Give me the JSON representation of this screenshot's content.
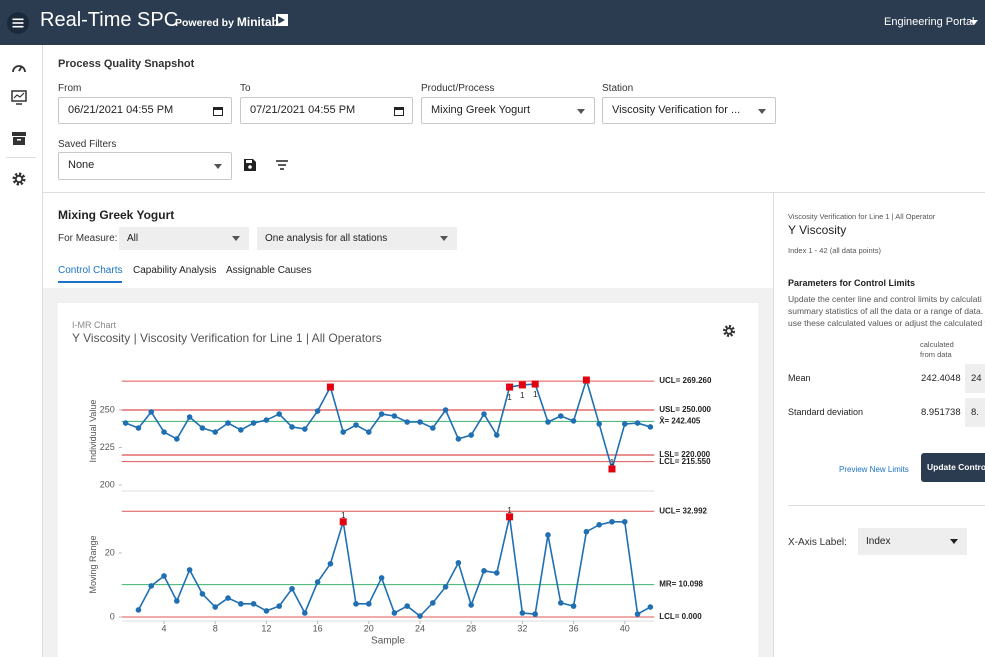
{
  "header": {
    "title": "Real-Time SPC",
    "powered_by": "Powered by",
    "brand": "Minitab",
    "portal": "Engineering Portal"
  },
  "filters": {
    "title": "Process Quality Snapshot",
    "from": {
      "label": "From",
      "value": "06/21/2021 04:55 PM"
    },
    "to": {
      "label": "To",
      "value": "07/21/2021 04:55 PM"
    },
    "product": {
      "label": "Product/Process",
      "value": "Mixing Greek Yogurt"
    },
    "station": {
      "label": "Station",
      "value": "Viscosity Verification for ..."
    },
    "saved": {
      "label": "Saved Filters",
      "value": "None"
    }
  },
  "analysis": {
    "title": "Mixing Greek Yogurt",
    "measure_label": "For Measure:",
    "measure": "All",
    "stations": "One analysis for all stations",
    "tabs": [
      "Control Charts",
      "Capability Analysis",
      "Assignable Causes"
    ]
  },
  "card": {
    "kind": "I-MR Chart",
    "title": "Y Viscosity | Viscosity Verification for Line 1 | All Operators"
  },
  "chart_data": [
    {
      "type": "line",
      "y_label": "Individual Value",
      "x": [
        1,
        2,
        3,
        4,
        5,
        6,
        7,
        8,
        9,
        10,
        11,
        12,
        13,
        14,
        15,
        16,
        17,
        18,
        19,
        20,
        21,
        22,
        23,
        24,
        25,
        26,
        27,
        28,
        29,
        30,
        31,
        32,
        33,
        34,
        35,
        36,
        37,
        38,
        39,
        40,
        41,
        42
      ],
      "series": [
        {
          "color": "#1f6fb2",
          "values": [
            241.3,
            238,
            248.7,
            235.3,
            230.7,
            245.3,
            238,
            235.3,
            241.3,
            236.7,
            241.3,
            243.3,
            247.3,
            238.7,
            237.3,
            249.3,
            265.3,
            235.3,
            240,
            235.3,
            247.3,
            246,
            242,
            242,
            238,
            250,
            230.7,
            233.3,
            247.3,
            233.3,
            265.3,
            266.7,
            267.3,
            242,
            246,
            242.7,
            270,
            240.7,
            210.7,
            240.7,
            241.3,
            238.7
          ]
        }
      ],
      "xlim": [
        0.7,
        42.3
      ],
      "ylim": [
        196,
        276
      ],
      "yticks": [
        200,
        225,
        250
      ],
      "reference_lines": [
        {
          "value": 269.26,
          "label": "UCL= 269.260",
          "color": "#e05555"
        },
        {
          "value": 250,
          "label": "USL= 250.000",
          "color": "#d42020"
        },
        {
          "value": 242.405,
          "label": "X̄= 242.405",
          "color": "#3cb371"
        },
        {
          "value": 220,
          "label": "LSL= 220.000",
          "color": "#d42020"
        },
        {
          "value": 215.55,
          "label": "LCL= 215.550",
          "color": "#e05555"
        }
      ],
      "flag_color": "#e3000f",
      "flags": [
        17,
        31,
        32,
        33,
        37,
        39
      ],
      "test_labels": [
        {
          "x": 31,
          "label": "1",
          "side": "below"
        },
        {
          "x": 32,
          "label": "1",
          "side": "below"
        },
        {
          "x": 33,
          "label": "1",
          "side": "below"
        },
        {
          "x": 39,
          "label": "1",
          "side": "above"
        }
      ]
    },
    {
      "type": "line",
      "y_label": "Moving Range",
      "x_label": "Sample",
      "x": [
        1,
        2,
        3,
        4,
        5,
        6,
        7,
        8,
        9,
        10,
        11,
        12,
        13,
        14,
        15,
        16,
        17,
        18,
        19,
        20,
        21,
        22,
        23,
        24,
        25,
        26,
        27,
        28,
        29,
        30,
        31,
        32,
        33,
        34,
        35,
        36,
        37,
        38,
        39,
        40,
        41,
        42
      ],
      "series": [
        {
          "color": "#1f6fb2",
          "values": [
            null,
            2.2,
            9.7,
            12.8,
            5,
            14.7,
            7.2,
            3.1,
            5.9,
            4.1,
            4.1,
            1.9,
            3.4,
            8.8,
            1.25,
            10.9,
            16.6,
            29.7,
            4.1,
            4.1,
            12.2,
            1.25,
            3.4,
            0.3,
            4.4,
            9.4,
            16.9,
            3.75,
            14.4,
            13.75,
            31.25,
            1.25,
            0.9,
            25.6,
            4.4,
            3.4,
            26.6,
            28.75,
            29.7,
            29.7,
            0.9,
            3.1
          ]
        }
      ],
      "xlim": [
        0.7,
        42.3
      ],
      "ylim": [
        -1.25,
        34
      ],
      "yticks": [
        0,
        20
      ],
      "xticks": [
        4,
        8,
        12,
        16,
        20,
        24,
        28,
        32,
        36,
        40
      ],
      "reference_lines": [
        {
          "value": 32.992,
          "label": "UCL= 32.992",
          "color": "#e05555"
        },
        {
          "value": 10.098,
          "label": "MR= 10.098",
          "color": "#3cb371"
        },
        {
          "value": 0,
          "label": "LCL= 0.000",
          "color": "#e05555"
        }
      ],
      "flag_color": "#e3000f",
      "flags": [
        18,
        31
      ],
      "test_labels": [
        {
          "x": 18,
          "label": "1",
          "side": "above"
        },
        {
          "x": 31,
          "label": "1",
          "side": "above"
        }
      ]
    }
  ],
  "side": {
    "context": "Viscosity Verification for Line 1 | All Operator",
    "title": "Y Viscosity",
    "range": "Index 1 - 42 (all data points)",
    "params_title": "Parameters for Control Limits",
    "params_text": [
      "Update the center line and control limits by calculati",
      "summary statistics of all the data or a range of data.",
      "use these calculated values or adjust the calculated v"
    ],
    "column": "calculated from data",
    "rows": [
      {
        "label": "Mean",
        "calculated": "242.4048",
        "input": "24"
      },
      {
        "label": "Standard deviation",
        "calculated": "8.951738",
        "input": "8."
      }
    ],
    "preview": "Preview New Limits",
    "update": "Update Contro",
    "x_axis_label": "X-Axis Label:",
    "x_axis_value": "Index"
  }
}
